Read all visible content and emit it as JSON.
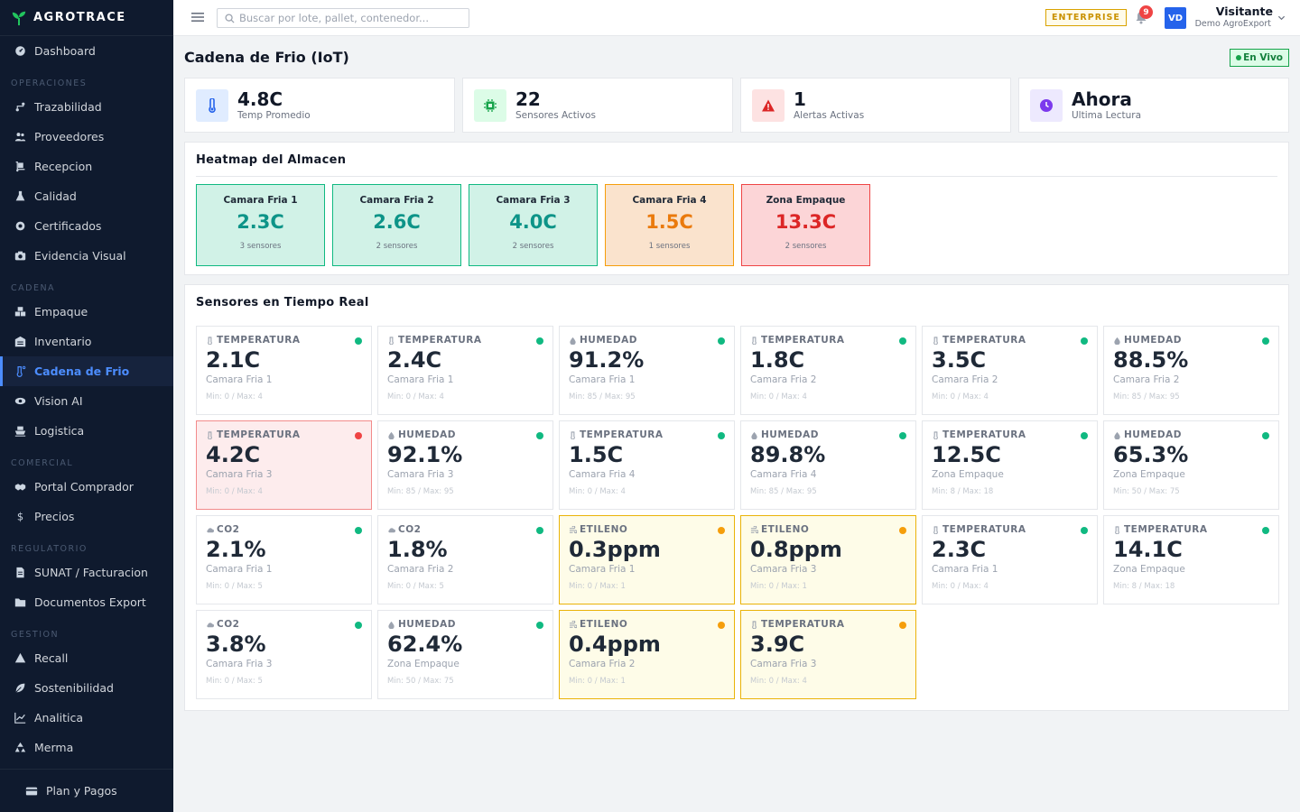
{
  "brand": {
    "name": "AGROTRACE"
  },
  "sidebar": {
    "groups": [
      {
        "title": "",
        "items": [
          {
            "label": "Dashboard",
            "icon": "gauge-icon",
            "active": false
          }
        ]
      },
      {
        "title": "OPERACIONES",
        "items": [
          {
            "label": "Trazabilidad",
            "icon": "route-icon",
            "active": false
          },
          {
            "label": "Proveedores",
            "icon": "users-icon",
            "active": false
          },
          {
            "label": "Recepcion",
            "icon": "dolly-icon",
            "active": false
          },
          {
            "label": "Calidad",
            "icon": "flask-icon",
            "active": false
          },
          {
            "label": "Certificados",
            "icon": "certificate-icon",
            "active": false
          },
          {
            "label": "Evidencia Visual",
            "icon": "camera-icon",
            "active": false
          }
        ]
      },
      {
        "title": "CADENA",
        "items": [
          {
            "label": "Empaque",
            "icon": "boxes-icon",
            "active": false
          },
          {
            "label": "Inventario",
            "icon": "warehouse-icon",
            "active": false
          },
          {
            "label": "Cadena de Frio",
            "icon": "temperature-icon",
            "active": true
          },
          {
            "label": "Vision AI",
            "icon": "eye-icon",
            "active": false
          },
          {
            "label": "Logistica",
            "icon": "ship-icon",
            "active": false
          }
        ]
      },
      {
        "title": "COMERCIAL",
        "items": [
          {
            "label": "Portal Comprador",
            "icon": "handshake-icon",
            "active": false
          },
          {
            "label": "Precios",
            "icon": "dollar-icon",
            "active": false
          }
        ]
      },
      {
        "title": "REGULATORIO",
        "items": [
          {
            "label": "SUNAT / Facturacion",
            "icon": "invoice-icon",
            "active": false
          },
          {
            "label": "Documentos Export",
            "icon": "folder-icon",
            "active": false
          }
        ]
      },
      {
        "title": "GESTION",
        "items": [
          {
            "label": "Recall",
            "icon": "warning-icon",
            "active": false
          },
          {
            "label": "Sostenibilidad",
            "icon": "leaf-icon",
            "active": false
          },
          {
            "label": "Analitica",
            "icon": "chart-line-icon",
            "active": false
          },
          {
            "label": "Merma",
            "icon": "recycle-icon",
            "active": false
          }
        ]
      }
    ],
    "footer": {
      "label": "Plan y Pagos"
    }
  },
  "topbar": {
    "search_placeholder": "Buscar por lote, pallet, contenedor...",
    "plan_badge": "ENTERPRISE",
    "notifications": "9",
    "avatar": "VD",
    "user_name": "Visitante",
    "user_org": "Demo AgroExport"
  },
  "page": {
    "title": "Cadena de Frio (IoT)",
    "live": "En Vivo"
  },
  "kpis": [
    {
      "value": "4.8C",
      "label": "Temp Promedio",
      "icon": "thermometer-icon",
      "color": "#2563eb",
      "bg": "#e0ecff"
    },
    {
      "value": "22",
      "label": "Sensores Activos",
      "icon": "chip-icon",
      "color": "#16a34a",
      "bg": "#dcfce7"
    },
    {
      "value": "1",
      "label": "Alertas Activas",
      "icon": "warning-icon",
      "color": "#dc2626",
      "bg": "#fde2e2"
    },
    {
      "value": "Ahora",
      "label": "Ultima Lectura",
      "icon": "clock-icon",
      "color": "#7c3aed",
      "bg": "#ede9fe"
    }
  ],
  "heatmap": {
    "title": "Heatmap del Almacen",
    "zones": [
      {
        "name": "Camara Fria 1",
        "value": "2.3C",
        "sensors": "3 sensores",
        "status": "ok"
      },
      {
        "name": "Camara Fria 2",
        "value": "2.6C",
        "sensors": "2 sensores",
        "status": "ok"
      },
      {
        "name": "Camara Fria 3",
        "value": "4.0C",
        "sensors": "2 sensores",
        "status": "ok"
      },
      {
        "name": "Camara Fria 4",
        "value": "1.5C",
        "sensors": "1 sensores",
        "status": "warn"
      },
      {
        "name": "Zona Empaque",
        "value": "13.3C",
        "sensors": "2 sensores",
        "status": "bad"
      }
    ]
  },
  "sensors": {
    "title": "Sensores en Tiempo Real",
    "items": [
      {
        "type": "TEMPERATURA",
        "icon": "thermometer-icon",
        "value": "2.1C",
        "location": "Camara Fria 1",
        "range": "Min: 0 / Max: 4",
        "status": "ok"
      },
      {
        "type": "TEMPERATURA",
        "icon": "thermometer-icon",
        "value": "2.4C",
        "location": "Camara Fria 1",
        "range": "Min: 0 / Max: 4",
        "status": "ok"
      },
      {
        "type": "HUMEDAD",
        "icon": "droplet-icon",
        "value": "91.2%",
        "location": "Camara Fria 1",
        "range": "Min: 85 / Max: 95",
        "status": "ok"
      },
      {
        "type": "TEMPERATURA",
        "icon": "thermometer-icon",
        "value": "1.8C",
        "location": "Camara Fria 2",
        "range": "Min: 0 / Max: 4",
        "status": "ok"
      },
      {
        "type": "TEMPERATURA",
        "icon": "thermometer-icon",
        "value": "3.5C",
        "location": "Camara Fria 2",
        "range": "Min: 0 / Max: 4",
        "status": "ok"
      },
      {
        "type": "HUMEDAD",
        "icon": "droplet-icon",
        "value": "88.5%",
        "location": "Camara Fria 2",
        "range": "Min: 85 / Max: 95",
        "status": "ok"
      },
      {
        "type": "TEMPERATURA",
        "icon": "thermometer-icon",
        "value": "4.2C",
        "location": "Camara Fria 3",
        "range": "Min: 0 / Max: 4",
        "status": "alert"
      },
      {
        "type": "HUMEDAD",
        "icon": "droplet-icon",
        "value": "92.1%",
        "location": "Camara Fria 3",
        "range": "Min: 85 / Max: 95",
        "status": "ok"
      },
      {
        "type": "TEMPERATURA",
        "icon": "thermometer-icon",
        "value": "1.5C",
        "location": "Camara Fria 4",
        "range": "Min: 0 / Max: 4",
        "status": "ok"
      },
      {
        "type": "HUMEDAD",
        "icon": "droplet-icon",
        "value": "89.8%",
        "location": "Camara Fria 4",
        "range": "Min: 85 / Max: 95",
        "status": "ok"
      },
      {
        "type": "TEMPERATURA",
        "icon": "thermometer-icon",
        "value": "12.5C",
        "location": "Zona Empaque",
        "range": "Min: 8 / Max: 18",
        "status": "ok"
      },
      {
        "type": "HUMEDAD",
        "icon": "droplet-icon",
        "value": "65.3%",
        "location": "Zona Empaque",
        "range": "Min: 50 / Max: 75",
        "status": "ok"
      },
      {
        "type": "CO2",
        "icon": "cloud-icon",
        "value": "2.1%",
        "location": "Camara Fria 1",
        "range": "Min: 0 / Max: 5",
        "status": "ok"
      },
      {
        "type": "CO2",
        "icon": "cloud-icon",
        "value": "1.8%",
        "location": "Camara Fria 2",
        "range": "Min: 0 / Max: 5",
        "status": "ok"
      },
      {
        "type": "ETILENO",
        "icon": "wind-icon",
        "value": "0.3ppm",
        "location": "Camara Fria 1",
        "range": "Min: 0 / Max: 1",
        "status": "warn"
      },
      {
        "type": "ETILENO",
        "icon": "wind-icon",
        "value": "0.8ppm",
        "location": "Camara Fria 3",
        "range": "Min: 0 / Max: 1",
        "status": "warn"
      },
      {
        "type": "TEMPERATURA",
        "icon": "thermometer-icon",
        "value": "2.3C",
        "location": "Camara Fria 1",
        "range": "Min: 0 / Max: 4",
        "status": "ok"
      },
      {
        "type": "TEMPERATURA",
        "icon": "thermometer-icon",
        "value": "14.1C",
        "location": "Zona Empaque",
        "range": "Min: 8 / Max: 18",
        "status": "ok"
      },
      {
        "type": "CO2",
        "icon": "cloud-icon",
        "value": "3.8%",
        "location": "Camara Fria 3",
        "range": "Min: 0 / Max: 5",
        "status": "ok"
      },
      {
        "type": "HUMEDAD",
        "icon": "droplet-icon",
        "value": "62.4%",
        "location": "Zona Empaque",
        "range": "Min: 50 / Max: 75",
        "status": "ok"
      },
      {
        "type": "ETILENO",
        "icon": "wind-icon",
        "value": "0.4ppm",
        "location": "Camara Fria 2",
        "range": "Min: 0 / Max: 1",
        "status": "warn"
      },
      {
        "type": "TEMPERATURA",
        "icon": "thermometer-icon",
        "value": "3.9C",
        "location": "Camara Fria 3",
        "range": "Min: 0 / Max: 4",
        "status": "warn"
      }
    ]
  },
  "colors": {
    "ok": "#10b981",
    "warn": "#f59e0b",
    "alert": "#ef4444",
    "accent": "#4c8dff",
    "sidebar": "#0f1a2e"
  }
}
